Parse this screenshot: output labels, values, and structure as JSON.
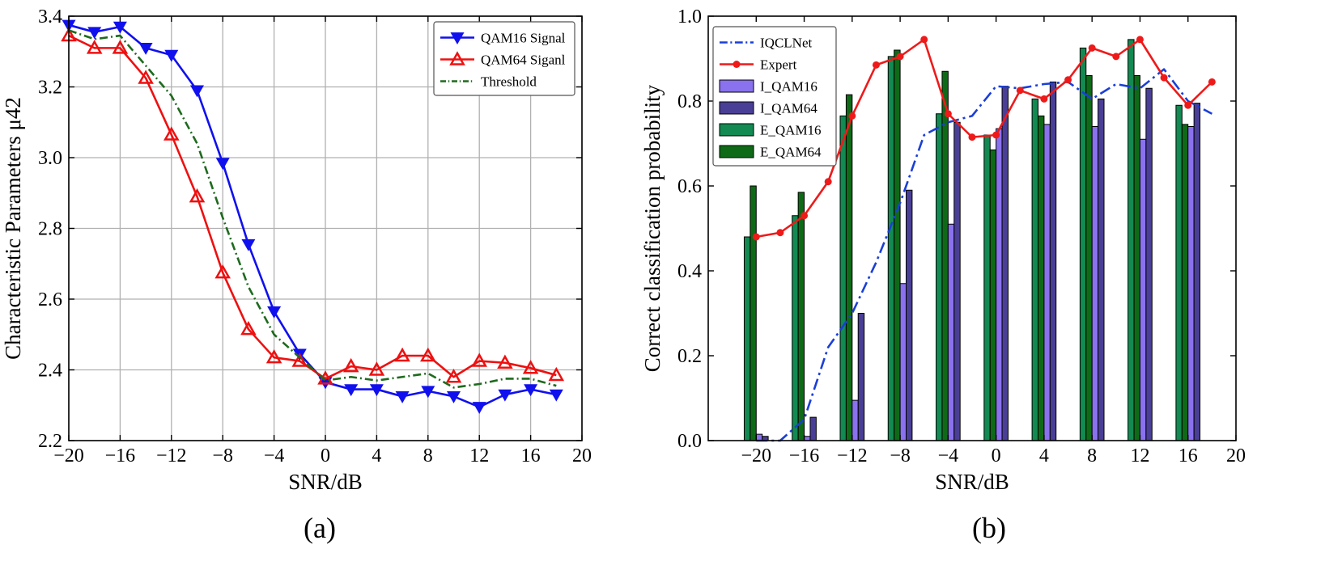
{
  "colors": {
    "qam16": "#1010ee",
    "qam64": "#ee1010",
    "threshold": "#1e6a1e",
    "iqclnet": "#1a3fd8",
    "expert": "#ee1a1a",
    "i_qam16": "#8a72ee",
    "i_qam64": "#4a3f96",
    "e_qam16": "#128a52",
    "e_qam64": "#0f6a18",
    "grid": "#b0b0b0"
  },
  "panels": {
    "a": {
      "caption": "(a)"
    },
    "b": {
      "caption": "(b)"
    }
  },
  "chart_data": [
    {
      "id": "a",
      "type": "line",
      "title": "",
      "xlabel": "SNR/dB",
      "ylabel": "Characteristic Parameters μ42",
      "xlim": [
        -20,
        20
      ],
      "ylim": [
        2.2,
        3.4
      ],
      "grid": true,
      "legend": "top-right",
      "xticks": [
        "−20",
        "−16",
        "−12",
        "−8",
        "−4",
        "0",
        "4",
        "8",
        "12",
        "16",
        "20"
      ],
      "xtick_values": [
        -20,
        -16,
        -12,
        -8,
        -4,
        0,
        4,
        8,
        12,
        16,
        20
      ],
      "yticks": [
        "2.2",
        "2.4",
        "2.6",
        "2.8",
        "3.0",
        "3.2",
        "3.4"
      ],
      "ytick_values": [
        2.2,
        2.4,
        2.6,
        2.8,
        3.0,
        3.2,
        3.4
      ],
      "x": [
        -20,
        -18,
        -16,
        -14,
        -12,
        -10,
        -8,
        -6,
        -4,
        -2,
        0,
        2,
        4,
        6,
        8,
        10,
        12,
        14,
        16,
        18
      ],
      "series": [
        {
          "name": "QAM16 Signal",
          "color_key": "qam16",
          "marker": "triangle-down",
          "dash": "",
          "values": [
            3.375,
            3.355,
            3.37,
            3.31,
            3.29,
            3.19,
            2.985,
            2.755,
            2.565,
            2.445,
            2.365,
            2.345,
            2.345,
            2.325,
            2.34,
            2.325,
            2.295,
            2.33,
            2.345,
            2.33
          ]
        },
        {
          "name": "QAM64 Siganl",
          "color_key": "qam64",
          "marker": "triangle-up",
          "dash": "",
          "values": [
            3.345,
            3.31,
            3.31,
            3.225,
            3.065,
            2.89,
            2.675,
            2.515,
            2.435,
            2.425,
            2.375,
            2.41,
            2.4,
            2.44,
            2.44,
            2.38,
            2.425,
            2.42,
            2.405,
            2.385
          ]
        },
        {
          "name": "Threshold",
          "color_key": "threshold",
          "marker": "none",
          "dash": "10,4,2,4",
          "values": [
            3.36,
            3.335,
            3.345,
            3.26,
            3.175,
            3.04,
            2.83,
            2.635,
            2.5,
            2.435,
            2.37,
            2.38,
            2.37,
            2.38,
            2.39,
            2.35,
            2.36,
            2.375,
            2.375,
            2.355
          ]
        }
      ]
    },
    {
      "id": "b",
      "type": "bar",
      "title": "",
      "xlabel": "SNR/dB",
      "ylabel": "Correct classification probability",
      "xlim": [
        -24,
        20
      ],
      "ylim": [
        0.0,
        1.0
      ],
      "grid": false,
      "legend": "top-left",
      "xticks": [
        "−20",
        "−16",
        "−12",
        "−8",
        "−4",
        "0",
        "4",
        "8",
        "12",
        "16",
        "20"
      ],
      "xtick_values": [
        -20,
        -16,
        -12,
        -8,
        -4,
        0,
        4,
        8,
        12,
        16,
        20
      ],
      "yticks": [
        "0.0",
        "0.2",
        "0.4",
        "0.6",
        "0.8",
        "1.0"
      ],
      "ytick_values": [
        0.0,
        0.2,
        0.4,
        0.6,
        0.8,
        1.0
      ],
      "x": [
        -20,
        -18,
        -16,
        -14,
        -12,
        -10,
        -8,
        -6,
        -4,
        -2,
        0,
        2,
        4,
        6,
        8,
        10,
        12,
        14,
        16,
        18
      ],
      "bar_groups": {
        "centers": [
          -20,
          -16,
          -12,
          -8,
          -4,
          0,
          4,
          8,
          12,
          16
        ],
        "series": [
          {
            "name": "E_QAM16",
            "color_key": "e_qam16",
            "values": [
              0.48,
              0.53,
              0.765,
              0.905,
              0.77,
              0.72,
              0.805,
              0.925,
              0.945,
              0.79
            ]
          },
          {
            "name": "E_QAM64",
            "color_key": "e_qam64",
            "values": [
              0.6,
              0.585,
              0.815,
              0.92,
              0.87,
              0.685,
              0.765,
              0.86,
              0.86,
              0.745
            ]
          },
          {
            "name": "I_QAM16",
            "color_key": "i_qam16",
            "values": [
              0.015,
              0.01,
              0.095,
              0.37,
              0.51,
              0.735,
              0.745,
              0.74,
              0.71,
              0.74
            ]
          },
          {
            "name": "I_QAM64",
            "color_key": "i_qam64",
            "values": [
              0.01,
              0.055,
              0.3,
              0.59,
              0.75,
              0.835,
              0.845,
              0.805,
              0.83,
              0.795
            ]
          }
        ]
      },
      "series": [
        {
          "name": "IQCLNet",
          "color_key": "iqclnet",
          "marker": "none",
          "dash": "14,5,3,5",
          "values": [
            0.0,
            0.0,
            0.05,
            0.22,
            0.3,
            0.42,
            0.56,
            0.72,
            0.75,
            0.765,
            0.835,
            0.83,
            0.84,
            0.845,
            0.805,
            0.84,
            0.83,
            0.875,
            0.8,
            0.77
          ]
        },
        {
          "name": "Expert",
          "color_key": "expert",
          "marker": "circle",
          "dash": "",
          "values": [
            0.48,
            0.49,
            0.53,
            0.61,
            0.765,
            0.885,
            0.905,
            0.945,
            0.77,
            0.715,
            0.72,
            0.825,
            0.805,
            0.85,
            0.925,
            0.905,
            0.945,
            0.855,
            0.79,
            0.845
          ]
        }
      ],
      "legend_order": [
        "IQCLNet",
        "Expert",
        "I_QAM16",
        "I_QAM64",
        "E_QAM16",
        "E_QAM64"
      ]
    }
  ]
}
